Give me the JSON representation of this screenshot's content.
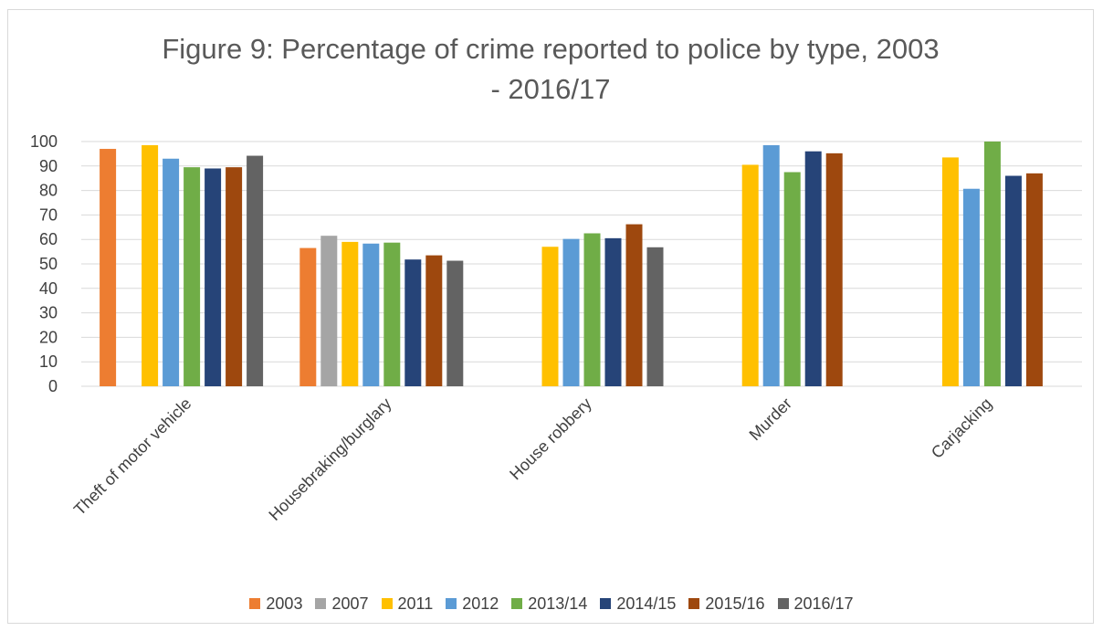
{
  "chart_data": {
    "type": "bar",
    "title_line1": "Figure 9: Percentage of crime reported to police by type, 2003",
    "title_line2": "- 2016/17",
    "categories": [
      "Theft of motor vehicle",
      "Housebraking/burglary",
      "House robbery",
      "Murder",
      "Carjacking"
    ],
    "ylim": [
      0,
      100
    ],
    "yticks": [
      0,
      10,
      20,
      30,
      40,
      50,
      60,
      70,
      80,
      90,
      100
    ],
    "grid": true,
    "legend_position": "bottom",
    "series": [
      {
        "name": "2003",
        "color": "#ED7D31",
        "values": [
          97,
          56.5,
          null,
          null,
          null
        ]
      },
      {
        "name": "2007",
        "color": "#A5A5A5",
        "values": [
          null,
          61.5,
          null,
          null,
          null
        ]
      },
      {
        "name": "2011",
        "color": "#FFC000",
        "values": [
          98.5,
          59,
          57,
          90.5,
          93.5
        ]
      },
      {
        "name": "2012",
        "color": "#5B9BD5",
        "values": [
          93,
          58.3,
          60.2,
          98.5,
          80.7
        ]
      },
      {
        "name": "2013/14",
        "color": "#70AD47",
        "values": [
          89.5,
          58.7,
          62.5,
          87.5,
          100
        ]
      },
      {
        "name": "2014/15",
        "color": "#264478",
        "values": [
          89,
          51.8,
          60.5,
          96,
          86
        ]
      },
      {
        "name": "2015/16",
        "color": "#9E480E",
        "values": [
          89.5,
          53.5,
          66.2,
          95.2,
          87
        ]
      },
      {
        "name": "2016/17",
        "color": "#636363",
        "values": [
          94.2,
          51.3,
          56.8,
          null,
          null
        ]
      }
    ]
  }
}
